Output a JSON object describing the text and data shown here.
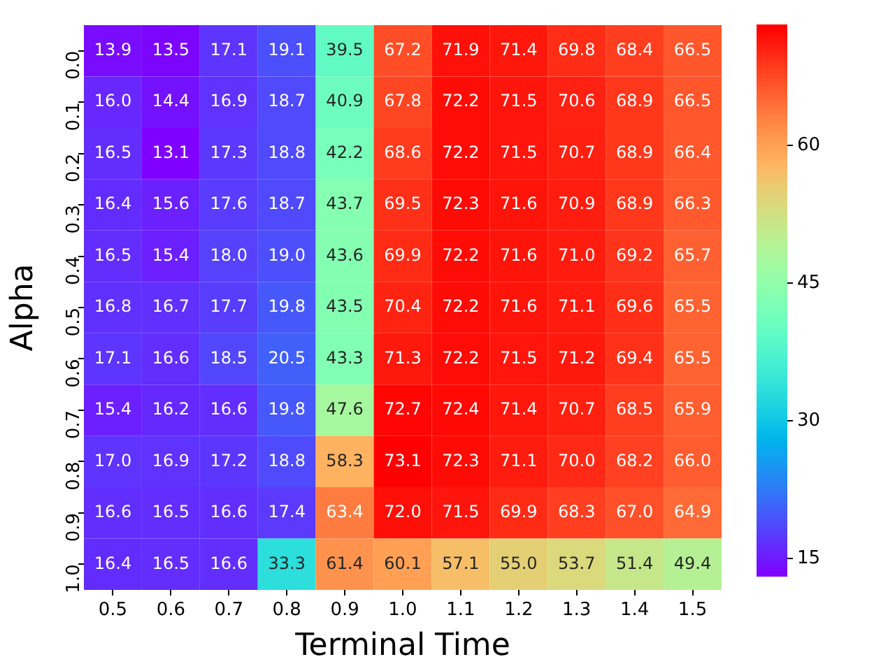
{
  "chart_data": {
    "type": "heatmap",
    "xlabel": "Terminal Time",
    "ylabel": "Alpha",
    "categories": [
      "0.5",
      "0.6",
      "0.7",
      "0.8",
      "0.9",
      "1.0",
      "1.1",
      "1.2",
      "1.3",
      "1.4",
      "1.5"
    ],
    "y_categories": [
      "0.0",
      "0.1",
      "0.2",
      "0.3",
      "0.4",
      "0.5",
      "0.6",
      "0.7",
      "0.8",
      "0.9",
      "1.0"
    ],
    "cells": [
      [
        13.9,
        13.5,
        17.1,
        19.1,
        39.5,
        67.2,
        71.9,
        71.4,
        69.8,
        68.4,
        66.5
      ],
      [
        16.0,
        14.4,
        16.9,
        18.7,
        40.9,
        67.8,
        72.2,
        71.5,
        70.6,
        68.9,
        66.5
      ],
      [
        16.5,
        13.1,
        17.3,
        18.8,
        42.2,
        68.6,
        72.2,
        71.5,
        70.7,
        68.9,
        66.4
      ],
      [
        16.4,
        15.6,
        17.6,
        18.7,
        43.7,
        69.5,
        72.3,
        71.6,
        70.9,
        68.9,
        66.3
      ],
      [
        16.5,
        15.4,
        18.0,
        19.0,
        43.6,
        69.9,
        72.2,
        71.6,
        71.0,
        69.2,
        65.7
      ],
      [
        16.8,
        16.7,
        17.7,
        19.8,
        43.5,
        70.4,
        72.2,
        71.6,
        71.1,
        69.6,
        65.5
      ],
      [
        17.1,
        16.6,
        18.5,
        20.5,
        43.3,
        71.3,
        72.2,
        71.5,
        71.2,
        69.4,
        65.5
      ],
      [
        15.4,
        16.2,
        16.6,
        19.8,
        47.6,
        72.7,
        72.4,
        71.4,
        70.7,
        68.5,
        65.9
      ],
      [
        17.0,
        16.9,
        17.2,
        18.8,
        58.3,
        73.1,
        72.3,
        71.1,
        70.0,
        68.2,
        66.0
      ],
      [
        16.6,
        16.5,
        16.6,
        17.4,
        63.4,
        72.0,
        71.5,
        69.9,
        68.3,
        67.0,
        64.9
      ],
      [
        16.4,
        16.5,
        16.6,
        33.3,
        61.4,
        60.1,
        57.1,
        55.0,
        53.7,
        51.4,
        49.4
      ]
    ],
    "cell_labels": [
      [
        "13.9",
        "13.5",
        "17.1",
        "19.1",
        "39.5",
        "67.2",
        "71.9",
        "71.4",
        "69.8",
        "68.4",
        "66.5"
      ],
      [
        "16.0",
        "14.4",
        "16.9",
        "18.7",
        "40.9",
        "67.8",
        "72.2",
        "71.5",
        "70.6",
        "68.9",
        "66.5"
      ],
      [
        "16.5",
        "13.1",
        "17.3",
        "18.8",
        "42.2",
        "68.6",
        "72.2",
        "71.5",
        "70.7",
        "68.9",
        "66.4"
      ],
      [
        "16.4",
        "15.6",
        "17.6",
        "18.7",
        "43.7",
        "69.5",
        "72.3",
        "71.6",
        "70.9",
        "68.9",
        "66.3"
      ],
      [
        "16.5",
        "15.4",
        "18.0",
        "19.0",
        "43.6",
        "69.9",
        "72.2",
        "71.6",
        "71.0",
        "69.2",
        "65.7"
      ],
      [
        "16.8",
        "16.7",
        "17.7",
        "19.8",
        "43.5",
        "70.4",
        "72.2",
        "71.6",
        "71.1",
        "69.6",
        "65.5"
      ],
      [
        "17.1",
        "16.6",
        "18.5",
        "20.5",
        "43.3",
        "71.3",
        "72.2",
        "71.5",
        "71.2",
        "69.4",
        "65.5"
      ],
      [
        "15.4",
        "16.2",
        "16.6",
        "19.8",
        "47.6",
        "72.7",
        "72.4",
        "71.4",
        "70.7",
        "68.5",
        "65.9"
      ],
      [
        "17.0",
        "16.9",
        "17.2",
        "18.8",
        "58.3",
        "73.1",
        "72.3",
        "71.1",
        "70.0",
        "68.2",
        "66.0"
      ],
      [
        "16.6",
        "16.5",
        "16.6",
        "17.4",
        "63.4",
        "72.0",
        "71.5",
        "69.9",
        "68.3",
        "67.0",
        "64.9"
      ],
      [
        "16.4",
        "16.5",
        "16.6",
        "33.3",
        "61.4",
        "60.1",
        "57.1",
        "55.0",
        "53.7",
        "51.4",
        "49.4"
      ]
    ],
    "clim": [
      13.1,
      73.1
    ],
    "cticks": [
      15,
      30,
      45,
      60
    ],
    "data_labels": true,
    "grid": false,
    "legend": false
  }
}
